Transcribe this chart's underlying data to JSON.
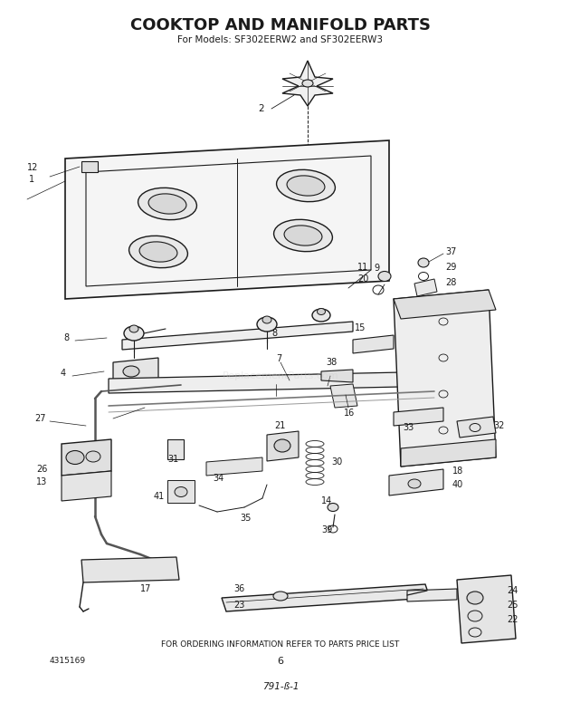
{
  "title": "COOKTOP AND MANIFOLD PARTS",
  "subtitle": "For Models: SF302EERW2 and SF302EERW3",
  "footer_text": "FOR ORDERING INFORMATION REFER TO PARTS PRICE LIST",
  "part_number": "4315169",
  "page_number": "6",
  "revision": "791-ß-1",
  "bg_color": "#ffffff",
  "line_color": "#1a1a1a",
  "title_fontsize": 13,
  "subtitle_fontsize": 7.5,
  "annotation_fontsize": 7,
  "footer_fontsize": 6
}
